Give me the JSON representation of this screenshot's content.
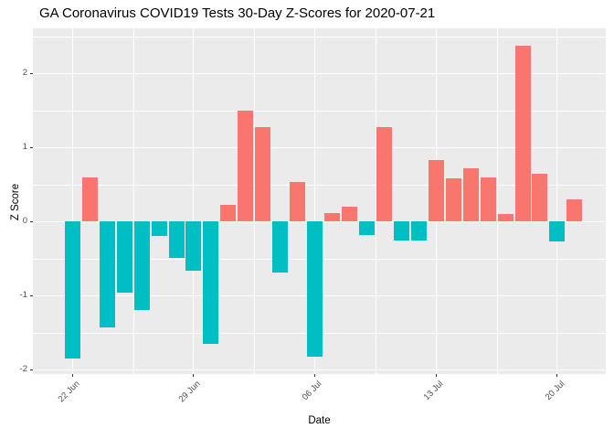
{
  "chart_data": {
    "type": "bar",
    "title": "GA Coronavirus COVID19 Tests 30-Day Z-Scores for 2020-07-21",
    "xlabel": "Date",
    "ylabel": "Z Score",
    "categories": [
      "22 Jun",
      "23 Jun",
      "24 Jun",
      "25 Jun",
      "26 Jun",
      "27 Jun",
      "28 Jun",
      "29 Jun",
      "30 Jun",
      "01 Jul",
      "02 Jul",
      "03 Jul",
      "04 Jul",
      "05 Jul",
      "06 Jul",
      "07 Jul",
      "08 Jul",
      "09 Jul",
      "10 Jul",
      "11 Jul",
      "12 Jul",
      "13 Jul",
      "14 Jul",
      "15 Jul",
      "16 Jul",
      "17 Jul",
      "18 Jul",
      "19 Jul",
      "20 Jul",
      "21 Jul"
    ],
    "values": [
      -1.85,
      0.6,
      -1.43,
      -0.96,
      -1.2,
      -0.2,
      -0.49,
      -0.66,
      -1.65,
      0.23,
      1.5,
      1.27,
      -0.69,
      0.53,
      -1.82,
      0.11,
      0.2,
      -0.18,
      1.27,
      -0.25,
      -0.25,
      0.83,
      0.58,
      0.72,
      0.6,
      0.1,
      2.38,
      0.65,
      -0.27,
      0.3
    ],
    "x_tick_labels": [
      "22 Jun",
      "29 Jun",
      "06 Jul",
      "13 Jul",
      "20 Jul"
    ],
    "x_tick_day_index": [
      0,
      7,
      14,
      21,
      28
    ],
    "x_minor_day_index": [
      3.5,
      10.5,
      17.5,
      24.5
    ],
    "y_ticks": [
      -2,
      -1,
      0,
      1,
      2
    ],
    "y_tick_labels": [
      "-2",
      "-1",
      "0",
      "1",
      "2"
    ],
    "y_minor_ticks": [
      -1.5,
      -0.5,
      0.5,
      1.5,
      2.5
    ],
    "ylim": [
      -2.2,
      2.6
    ],
    "grid": "on",
    "legend_position": "none",
    "colors": {
      "positive_bar": "#F8766D",
      "negative_bar": "#00BFC4",
      "panel_background": "#EBEBEB",
      "gridline": "#FFFFFF",
      "tick_text": "#4D4D4D",
      "axis_text": "#000000",
      "tick_mark": "#333333"
    }
  }
}
